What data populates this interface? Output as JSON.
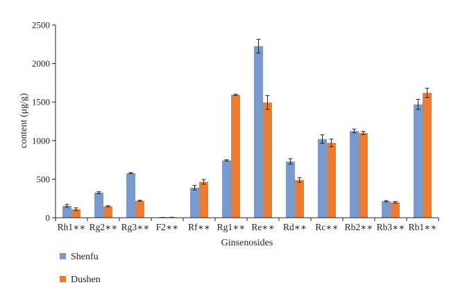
{
  "chart_data": {
    "type": "bar",
    "xlabel": "Ginsenosides",
    "ylabel": "content (μg/g)",
    "ylim": [
      0,
      2500
    ],
    "yticks": [
      0,
      500,
      1000,
      1500,
      2000,
      2500
    ],
    "grid": false,
    "legend_position": "bottom-left",
    "categories": [
      "Rh1",
      "Rg2",
      "Rg3",
      "F2",
      "Rf",
      "Rg1",
      "Re",
      "Rd",
      "Rc",
      "Rb2",
      "Rb3",
      "Rb1"
    ],
    "significance_marker": "∗∗",
    "series": [
      {
        "name": "Shenfu",
        "color": "#7a9acc",
        "values": [
          155,
          325,
          578,
          3,
          390,
          743,
          2225,
          730,
          1020,
          1125,
          215,
          1470
        ],
        "errors": [
          18,
          12,
          8,
          1,
          30,
          8,
          90,
          35,
          55,
          25,
          8,
          65
        ]
      },
      {
        "name": "Dushen",
        "color": "#ec7c30",
        "values": [
          110,
          148,
          220,
          5,
          465,
          1595,
          1495,
          490,
          970,
          1100,
          200,
          1620
        ],
        "errors": [
          18,
          8,
          6,
          1,
          30,
          8,
          90,
          30,
          50,
          20,
          10,
          60
        ]
      }
    ]
  }
}
